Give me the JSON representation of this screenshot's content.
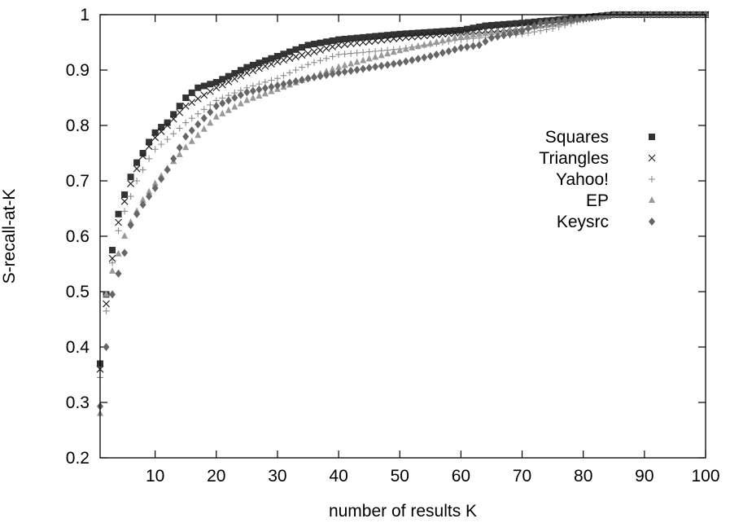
{
  "chart_data": {
    "type": "scatter",
    "title": "",
    "xlabel": "number of results K",
    "ylabel": "S-recall-at-K",
    "xlim": [
      1,
      100
    ],
    "ylim": [
      0.2,
      1.0
    ],
    "xticks": [
      10,
      20,
      30,
      40,
      50,
      60,
      70,
      80,
      90,
      100
    ],
    "yticks": [
      0.2,
      0.3,
      0.4,
      0.5,
      0.6,
      0.7,
      0.8,
      0.9,
      1.0
    ],
    "ytick_labels": [
      "0.2",
      "0.3",
      "0.4",
      "0.5",
      "0.6",
      "0.7",
      "0.8",
      "0.9",
      "1"
    ],
    "grid": false,
    "legend_position": "right",
    "series": [
      {
        "name": "Squares",
        "marker": "square",
        "color": "#333333",
        "anchors": [
          [
            1,
            0.37
          ],
          [
            2,
            0.495
          ],
          [
            3,
            0.575
          ],
          [
            4,
            0.64
          ],
          [
            5,
            0.675
          ],
          [
            6,
            0.707
          ],
          [
            7,
            0.733
          ],
          [
            8,
            0.75
          ],
          [
            9,
            0.77
          ],
          [
            10,
            0.787
          ],
          [
            11,
            0.797
          ],
          [
            12,
            0.805
          ],
          [
            13,
            0.82
          ],
          [
            14,
            0.835
          ],
          [
            15,
            0.85
          ],
          [
            17,
            0.868
          ],
          [
            20,
            0.878
          ],
          [
            25,
            0.905
          ],
          [
            30,
            0.925
          ],
          [
            35,
            0.945
          ],
          [
            40,
            0.955
          ],
          [
            50,
            0.965
          ],
          [
            60,
            0.972
          ],
          [
            64,
            0.98
          ],
          [
            70,
            0.985
          ],
          [
            80,
            0.995
          ],
          [
            85,
            1.0
          ],
          [
            100,
            1.0
          ]
        ]
      },
      {
        "name": "Triangles",
        "marker": "cross",
        "color": "#222222",
        "anchors": [
          [
            1,
            0.36
          ],
          [
            2,
            0.478
          ],
          [
            3,
            0.56
          ],
          [
            4,
            0.625
          ],
          [
            5,
            0.663
          ],
          [
            6,
            0.695
          ],
          [
            7,
            0.722
          ],
          [
            8,
            0.745
          ],
          [
            9,
            0.762
          ],
          [
            10,
            0.778
          ],
          [
            12,
            0.8
          ],
          [
            15,
            0.835
          ],
          [
            20,
            0.868
          ],
          [
            25,
            0.895
          ],
          [
            30,
            0.915
          ],
          [
            35,
            0.93
          ],
          [
            40,
            0.945
          ],
          [
            50,
            0.958
          ],
          [
            60,
            0.968
          ],
          [
            70,
            0.978
          ],
          [
            75,
            0.985
          ],
          [
            80,
            0.993
          ],
          [
            85,
            1.0
          ],
          [
            100,
            1.0
          ]
        ]
      },
      {
        "name": "Yahoo!",
        "marker": "plus",
        "color": "#8a8a8a",
        "anchors": [
          [
            1,
            0.345
          ],
          [
            2,
            0.465
          ],
          [
            3,
            0.552
          ],
          [
            4,
            0.61
          ],
          [
            5,
            0.645
          ],
          [
            6,
            0.672
          ],
          [
            7,
            0.7
          ],
          [
            8,
            0.72
          ],
          [
            9,
            0.74
          ],
          [
            10,
            0.757
          ],
          [
            12,
            0.775
          ],
          [
            15,
            0.805
          ],
          [
            20,
            0.845
          ],
          [
            25,
            0.868
          ],
          [
            30,
            0.885
          ],
          [
            35,
            0.91
          ],
          [
            40,
            0.928
          ],
          [
            50,
            0.938
          ],
          [
            60,
            0.955
          ],
          [
            70,
            0.965
          ],
          [
            75,
            0.975
          ],
          [
            80,
            0.99
          ],
          [
            85,
            1.0
          ],
          [
            100,
            1.0
          ]
        ]
      },
      {
        "name": "EP",
        "marker": "triangle",
        "color": "#999999",
        "anchors": [
          [
            1,
            0.28
          ],
          [
            2,
            0.495
          ],
          [
            3,
            0.537
          ],
          [
            4,
            0.568
          ],
          [
            5,
            0.6
          ],
          [
            6,
            0.625
          ],
          [
            7,
            0.645
          ],
          [
            8,
            0.665
          ],
          [
            9,
            0.68
          ],
          [
            10,
            0.695
          ],
          [
            12,
            0.722
          ],
          [
            15,
            0.76
          ],
          [
            20,
            0.815
          ],
          [
            25,
            0.845
          ],
          [
            30,
            0.865
          ],
          [
            35,
            0.885
          ],
          [
            40,
            0.905
          ],
          [
            50,
            0.935
          ],
          [
            60,
            0.96
          ],
          [
            70,
            0.975
          ],
          [
            75,
            0.982
          ],
          [
            80,
            0.993
          ],
          [
            85,
            1.0
          ],
          [
            100,
            1.0
          ]
        ]
      },
      {
        "name": "Keysrc",
        "marker": "diamond",
        "color": "#666666",
        "anchors": [
          [
            1,
            0.293
          ],
          [
            2,
            0.4
          ],
          [
            3,
            0.495
          ],
          [
            5,
            0.57
          ],
          [
            6,
            0.62
          ],
          [
            7,
            0.64
          ],
          [
            8,
            0.657
          ],
          [
            9,
            0.672
          ],
          [
            10,
            0.687
          ],
          [
            12,
            0.72
          ],
          [
            15,
            0.78
          ],
          [
            20,
            0.835
          ],
          [
            25,
            0.86
          ],
          [
            30,
            0.872
          ],
          [
            35,
            0.885
          ],
          [
            40,
            0.895
          ],
          [
            50,
            0.913
          ],
          [
            55,
            0.925
          ],
          [
            60,
            0.94
          ],
          [
            63,
            0.945
          ],
          [
            65,
            0.958
          ],
          [
            70,
            0.97
          ],
          [
            73,
            0.985
          ],
          [
            80,
            0.993
          ],
          [
            85,
            1.0
          ],
          [
            100,
            1.0
          ]
        ]
      }
    ]
  }
}
